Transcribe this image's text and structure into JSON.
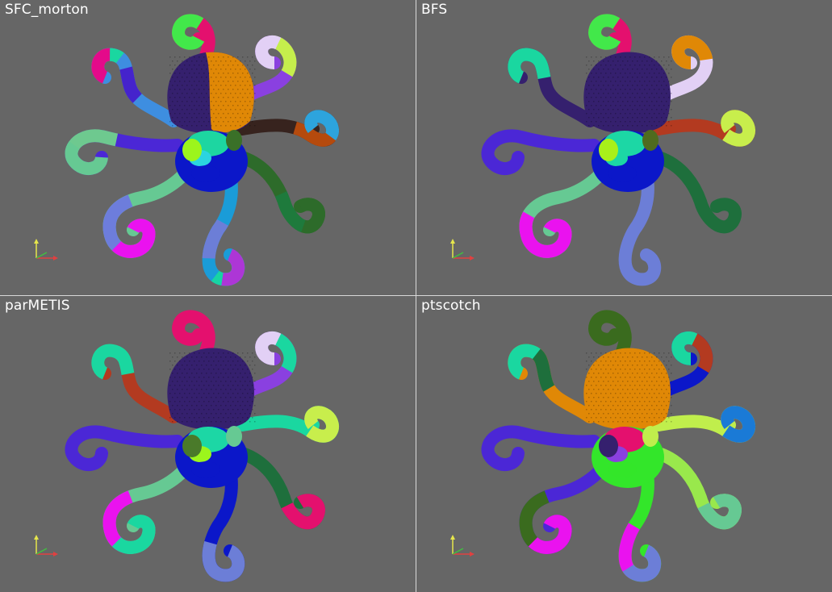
{
  "panels": [
    {
      "id": "sfc-morton",
      "title": "SFC_morton",
      "head": [
        "#35206e",
        "#e08806"
      ],
      "body": [
        "#0b17c9",
        "#1dd6a1",
        "#2bd4e0",
        "#9cf51c",
        "#3a7028"
      ],
      "arm_colors": [
        [
          "#e4106e",
          "#42e84a"
        ],
        [
          "#8a40e0",
          "#c5ee4c",
          "#e2d0f5"
        ],
        [
          "#37231e",
          "#b54a0d",
          "#2da4dd"
        ],
        [
          "#2d6b2a",
          "#1e7a3c",
          "#2d6b2a"
        ],
        [
          "#1a9cd8",
          "#6c7ed7",
          "#17d4a3",
          "#ad36d6"
        ],
        [
          "#66c993",
          "#6d7ddc",
          "#ea12ef"
        ],
        [
          "#4b27d6",
          "#6ec98f",
          "#66c993"
        ],
        [
          "#3e8ee0",
          "#4523cc",
          "#1ad7a0",
          "#e40a8a"
        ]
      ]
    },
    {
      "id": "bfs",
      "title": "BFS",
      "head": [
        "#35206e",
        "#35206e"
      ],
      "body": [
        "#0b17c9",
        "#1cd7a5",
        "#1cd7a5",
        "#a8f01a",
        "#4f6b1e"
      ],
      "arm_colors": [
        [
          "#e4106e",
          "#42e84a"
        ],
        [
          "#e2d0f5",
          "#e08806"
        ],
        [
          "#b33a20",
          "#c8ee4c"
        ],
        [
          "#1e6f3c"
        ],
        [
          "#6c7ed7"
        ],
        [
          "#66c993",
          "#ea12ef"
        ],
        [
          "#4b27d6"
        ],
        [
          "#35206e",
          "#1ad7a0"
        ]
      ]
    },
    {
      "id": "parmetis",
      "title": "parMETIS",
      "head": [
        "#35206e",
        "#35206e"
      ],
      "body": [
        "#0b17c9",
        "#1cd7a5",
        "#9cf51c",
        "#4a7a2a",
        "#66c993"
      ],
      "arm_colors": [
        [
          "#e4106e"
        ],
        [
          "#8a40e0",
          "#1ad7a0",
          "#e2d0f5"
        ],
        [
          "#1ad7a0",
          "#c8ee4c"
        ],
        [
          "#1e6f3c",
          "#e4106e"
        ],
        [
          "#0b17c9",
          "#6c7ed7"
        ],
        [
          "#66c993",
          "#ea12ef",
          "#1ad7a0"
        ],
        [
          "#4b27d6"
        ],
        [
          "#b33a20",
          "#1ad7a0"
        ]
      ]
    },
    {
      "id": "ptscotch",
      "title": "ptscotch",
      "head": [
        "#e08806",
        "#e08806"
      ],
      "body": [
        "#33e62a",
        "#e4106e",
        "#8a40e0",
        "#35206e",
        "#c0ee4c"
      ],
      "arm_colors": [
        [
          "#3a6b1e"
        ],
        [
          "#0b17c9",
          "#b33a20",
          "#1ad7a0"
        ],
        [
          "#c0ee4c",
          "#1a7ad6"
        ],
        [
          "#99e84c",
          "#66c993"
        ],
        [
          "#33e62a",
          "#ea12ef",
          "#6c7ed7"
        ],
        [
          "#4b27d6",
          "#3a6b1e",
          "#ea12ef"
        ],
        [
          "#4b27d6"
        ],
        [
          "#e08806",
          "#1e6f3c",
          "#1ad7a0"
        ]
      ]
    }
  ],
  "colors": {
    "background": "#666666",
    "divider": "#d9d9d9",
    "title_text": "#ffffff"
  }
}
